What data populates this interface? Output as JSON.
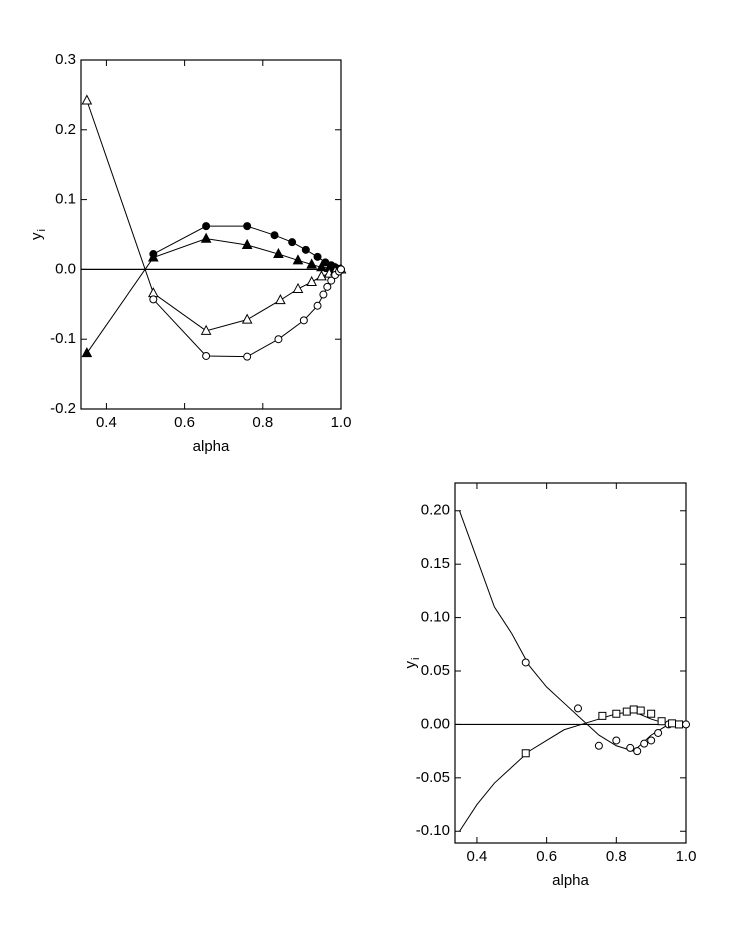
{
  "chart_data": [
    {
      "type": "line",
      "xlabel": "alpha",
      "ylabel": "y",
      "ylabel_sub": "i",
      "xlim": [
        0.335,
        1.0
      ],
      "ylim": [
        -0.2,
        0.3
      ],
      "xticks": [
        0.4,
        0.6,
        0.8,
        {
          "value": 1,
          "label": "1.0"
        }
      ],
      "yticks": [
        0.3,
        0.2,
        0.1,
        {
          "value": 0,
          "label": "0.0"
        },
        -0.1,
        -0.2
      ],
      "zero_line": true,
      "series": [
        {
          "marker": "filled-circle",
          "line": true,
          "color": "#000",
          "x": [
            0.52,
            0.655,
            0.76,
            0.83,
            0.875,
            0.91,
            0.94,
            0.96,
            0.975,
            0.985,
            0.995,
            1.0
          ],
          "values": [
            0.022,
            0.062,
            0.062,
            0.049,
            0.039,
            0.028,
            0.018,
            0.01,
            0.006,
            0.003,
            0.001,
            0
          ]
        },
        {
          "marker": "filled-triangle",
          "line": true,
          "color": "#000",
          "x": [
            0.35,
            0.52,
            0.655,
            0.76,
            0.84,
            0.89,
            0.925,
            0.95,
            0.97,
            0.985,
            1.0
          ],
          "values": [
            -0.12,
            0.017,
            0.044,
            0.035,
            0.022,
            0.013,
            0.007,
            0.003,
            0.002,
            0.001,
            0
          ]
        },
        {
          "marker": "open-triangle",
          "line": true,
          "color": "#000",
          "x": [
            0.35,
            0.52,
            0.655,
            0.76,
            0.845,
            0.89,
            0.925,
            0.95,
            0.97,
            0.985,
            1.0
          ],
          "values": [
            0.242,
            -0.034,
            -0.088,
            -0.072,
            -0.044,
            -0.028,
            -0.018,
            -0.01,
            -0.006,
            -0.003,
            0
          ]
        },
        {
          "marker": "open-circle",
          "line": true,
          "color": "#000",
          "x": [
            0.52,
            0.655,
            0.76,
            0.84,
            0.905,
            0.94,
            0.955,
            0.965,
            0.975,
            0.985,
            0.995,
            1.0
          ],
          "values": [
            -0.043,
            -0.124,
            -0.125,
            -0.1,
            -0.073,
            -0.052,
            -0.036,
            -0.025,
            -0.016,
            -0.008,
            -0.003,
            0
          ]
        }
      ]
    },
    {
      "type": "line",
      "xlabel": "alpha",
      "ylabel": "y",
      "ylabel_sub": "i",
      "xlim": [
        0.337,
        1.0
      ],
      "ylim": [
        -0.111,
        0.226
      ],
      "xticks": [
        0.4,
        0.6,
        0.8,
        {
          "value": 1,
          "label": "1.0"
        }
      ],
      "yticks": [
        {
          "value": 0.2,
          "label": "0.20"
        },
        {
          "value": 0.15,
          "label": "0.15"
        },
        {
          "value": 0.1,
          "label": "0.10"
        },
        {
          "value": 0.05,
          "label": "0.05"
        },
        {
          "value": 0,
          "label": "0.00"
        },
        {
          "value": -0.05,
          "label": "-0.05"
        },
        {
          "value": -0.1,
          "label": "-0.10"
        }
      ],
      "zero_line": true,
      "series": [
        {
          "marker": "none",
          "line": true,
          "color": "#000",
          "x": [
            0.35,
            0.4,
            0.45,
            0.5,
            0.55,
            0.6,
            0.65,
            0.7,
            0.75,
            0.8,
            0.85,
            0.9,
            0.95,
            1.0
          ],
          "values": [
            0.2,
            0.155,
            0.11,
            0.085,
            0.055,
            0.035,
            0.02,
            0.005,
            -0.01,
            -0.02,
            -0.025,
            -0.01,
            0,
            0
          ]
        },
        {
          "marker": "none",
          "line": true,
          "color": "#000",
          "x": [
            0.35,
            0.4,
            0.45,
            0.5,
            0.55,
            0.6,
            0.65,
            0.7,
            0.75,
            0.8,
            0.85,
            0.9,
            0.95,
            1.0
          ],
          "values": [
            -0.1,
            -0.075,
            -0.055,
            -0.04,
            -0.025,
            -0.015,
            -0.005,
            0,
            0.005,
            0.01,
            0.012,
            0.005,
            0,
            0
          ]
        },
        {
          "marker": "open-circle",
          "line": false,
          "color": "#000",
          "x": [
            0.54,
            0.69,
            0.75,
            0.8,
            0.84,
            0.86,
            0.88,
            0.9,
            0.92,
            0.95,
            1.0
          ],
          "values": [
            0.058,
            0.015,
            -0.02,
            -0.015,
            -0.022,
            -0.025,
            -0.018,
            -0.015,
            -0.008,
            0,
            0
          ]
        },
        {
          "marker": "open-square",
          "line": false,
          "color": "#000",
          "x": [
            0.54,
            0.76,
            0.8,
            0.83,
            0.85,
            0.87,
            0.9,
            0.93,
            0.96,
            0.98
          ],
          "values": [
            -0.027,
            0.008,
            0.01,
            0.012,
            0.014,
            0.013,
            0.01,
            0.003,
            0.001,
            0
          ]
        }
      ]
    }
  ]
}
